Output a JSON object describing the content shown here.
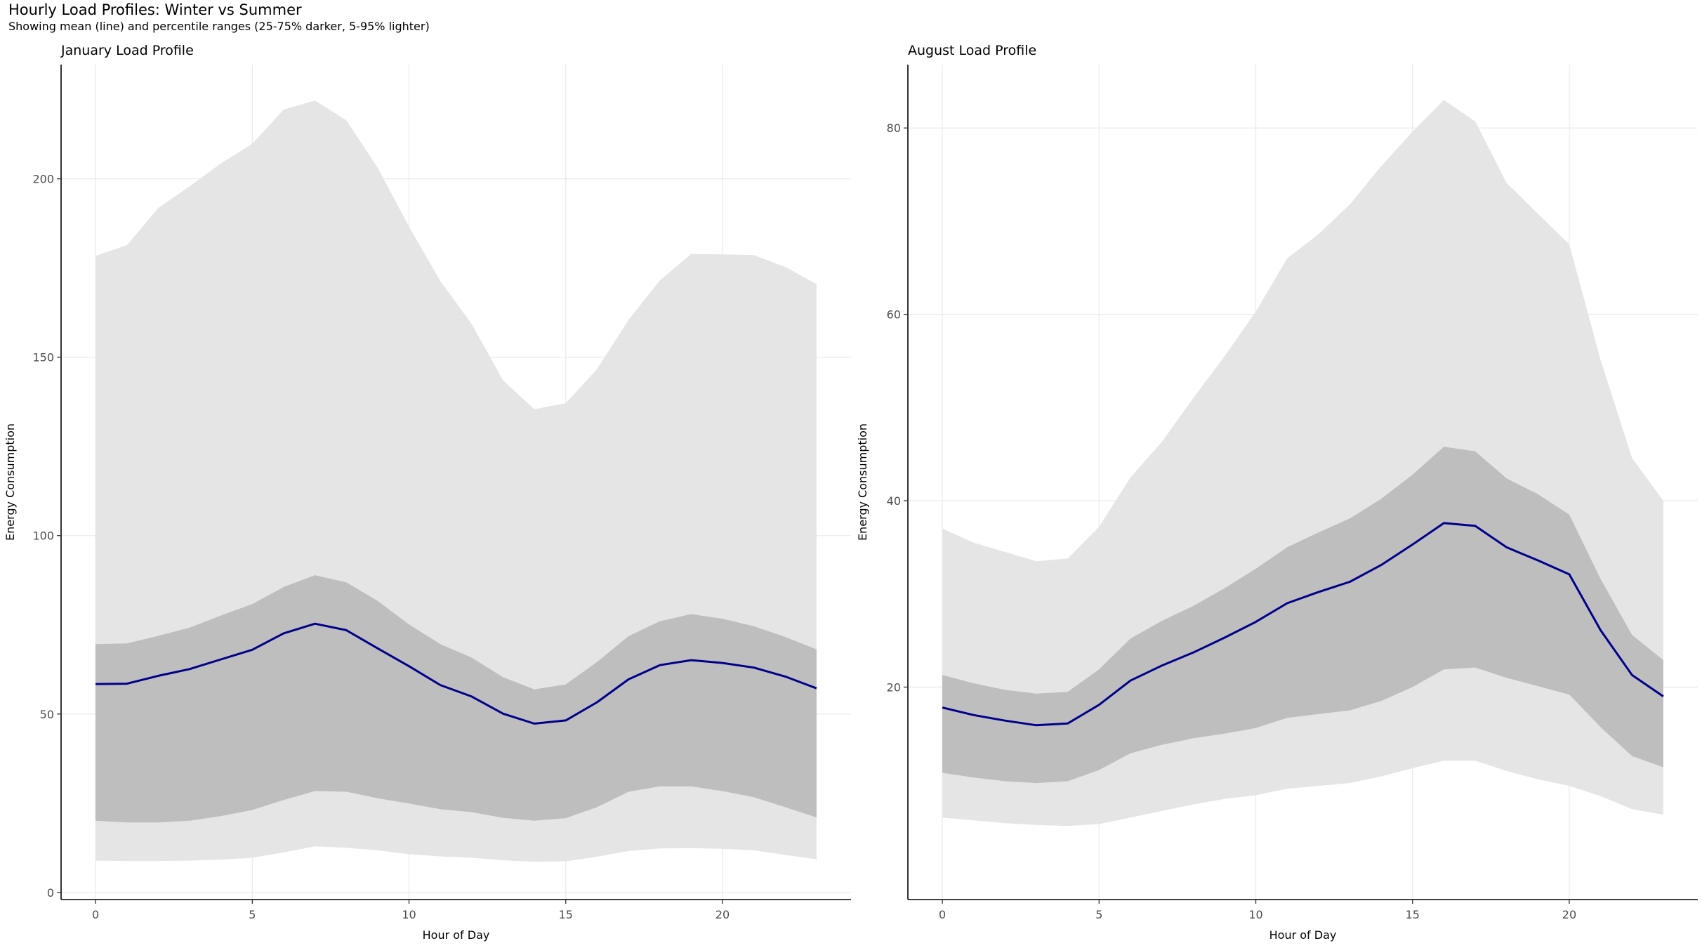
{
  "title": "Hourly Load Profiles: Winter vs Summer",
  "subtitle": "Showing mean (line) and percentile ranges (25-75% darker, 5-95% lighter)",
  "colors": {
    "mean_line": "#00008b",
    "band_25_75": "#bebebe",
    "band_5_95": "#e5e5e5",
    "grid": "#ebebeb",
    "axis": "#000000"
  },
  "chart_data": [
    {
      "type": "area",
      "title": "January Load Profile",
      "xlabel": "Hour of Day",
      "ylabel": "Energy Consumption",
      "xlim": [
        -1.1,
        24.1
      ],
      "ylim": [
        -2,
        232
      ],
      "xticks": [
        0,
        5,
        10,
        15,
        20
      ],
      "yticks": [
        0,
        50,
        100,
        150,
        200
      ],
      "x": [
        0,
        1,
        2,
        3,
        4,
        5,
        6,
        7,
        8,
        9,
        10,
        11,
        12,
        13,
        14,
        15,
        16,
        17,
        18,
        19,
        20,
        21,
        22,
        23
      ],
      "series": [
        {
          "name": "p95",
          "values": [
            178.4,
            181.4,
            191.8,
            197.9,
            204.3,
            209.8,
            219.4,
            221.9,
            216.4,
            203.1,
            186.6,
            171.3,
            159.3,
            143.5,
            135.4,
            137.1,
            146.7,
            160.4,
            171.5,
            178.9,
            178.8,
            178.6,
            175.3,
            170.5
          ]
        },
        {
          "name": "p75",
          "values": [
            69.6,
            69.8,
            71.9,
            74.2,
            77.6,
            80.8,
            85.6,
            88.9,
            86.9,
            81.7,
            75.1,
            69.6,
            65.8,
            60.3,
            56.9,
            58.3,
            64.6,
            71.8,
            76.0,
            78.0,
            76.7,
            74.6,
            71.6,
            68.1
          ]
        },
        {
          "name": "mean",
          "values": [
            58.4,
            58.5,
            60.7,
            62.6,
            65.3,
            68.0,
            72.6,
            75.3,
            73.5,
            68.4,
            63.4,
            58.1,
            54.9,
            50.1,
            47.3,
            48.2,
            53.3,
            59.7,
            63.7,
            65.1,
            64.3,
            63.0,
            60.5,
            57.2
          ]
        },
        {
          "name": "p25",
          "values": [
            20.1,
            19.6,
            19.6,
            20.1,
            21.4,
            23.1,
            25.9,
            28.4,
            28.2,
            26.4,
            24.9,
            23.3,
            22.5,
            20.9,
            20.1,
            20.8,
            23.9,
            28.2,
            29.7,
            29.7,
            28.4,
            26.7,
            23.9,
            21.0
          ]
        },
        {
          "name": "p5",
          "values": [
            8.9,
            8.8,
            8.8,
            8.9,
            9.2,
            9.7,
            11.2,
            12.9,
            12.5,
            11.8,
            10.7,
            10.1,
            9.7,
            9.0,
            8.6,
            8.7,
            10.0,
            11.6,
            12.3,
            12.4,
            12.2,
            11.8,
            10.5,
            9.3
          ]
        }
      ]
    },
    {
      "type": "area",
      "title": "August Load Profile",
      "xlabel": "Hour of Day",
      "ylabel": "Energy Consumption",
      "xlim": [
        -1.1,
        24.1
      ],
      "ylim": [
        -2.8,
        86.8
      ],
      "xticks": [
        0,
        5,
        10,
        15,
        20
      ],
      "yticks": [
        20,
        40,
        60,
        80
      ],
      "x": [
        0,
        1,
        2,
        3,
        4,
        5,
        6,
        7,
        8,
        9,
        10,
        11,
        12,
        13,
        14,
        15,
        16,
        17,
        18,
        19,
        20,
        21,
        22,
        23
      ],
      "series": [
        {
          "name": "p95",
          "values": [
            37.0,
            35.5,
            34.5,
            33.5,
            33.8,
            37.2,
            42.5,
            46.3,
            51.0,
            55.5,
            60.3,
            66.0,
            68.6,
            71.8,
            75.9,
            79.6,
            83.0,
            80.7,
            74.1,
            70.8,
            67.5,
            55.1,
            44.6,
            40.0
          ]
        },
        {
          "name": "p75",
          "values": [
            21.3,
            20.4,
            19.7,
            19.3,
            19.5,
            21.9,
            25.2,
            27.1,
            28.7,
            30.6,
            32.7,
            35.0,
            36.6,
            38.1,
            40.2,
            42.8,
            45.8,
            45.3,
            42.4,
            40.7,
            38.5,
            31.6,
            25.6,
            22.9
          ]
        },
        {
          "name": "mean",
          "values": [
            17.8,
            17.0,
            16.4,
            15.9,
            16.1,
            18.1,
            20.7,
            22.3,
            23.7,
            25.3,
            27.0,
            29.0,
            30.2,
            31.3,
            33.1,
            35.3,
            37.6,
            37.3,
            35.0,
            33.6,
            32.1,
            26.1,
            21.3,
            19.0
          ]
        },
        {
          "name": "p25",
          "values": [
            10.8,
            10.3,
            9.9,
            9.7,
            9.9,
            11.1,
            12.9,
            13.8,
            14.5,
            15.0,
            15.6,
            16.7,
            17.1,
            17.5,
            18.5,
            20.0,
            21.9,
            22.1,
            21.0,
            20.1,
            19.2,
            15.7,
            12.6,
            11.4
          ]
        },
        {
          "name": "p5",
          "values": [
            6.0,
            5.7,
            5.4,
            5.2,
            5.1,
            5.3,
            6.0,
            6.7,
            7.4,
            8.0,
            8.4,
            9.1,
            9.4,
            9.7,
            10.4,
            11.3,
            12.1,
            12.1,
            11.0,
            10.1,
            9.4,
            8.3,
            6.9,
            6.3
          ]
        }
      ]
    }
  ]
}
